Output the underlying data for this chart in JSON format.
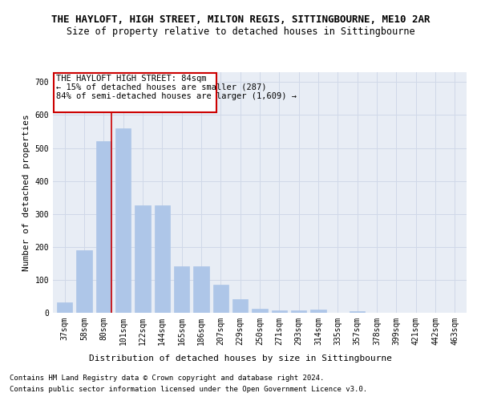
{
  "title": "THE HAYLOFT, HIGH STREET, MILTON REGIS, SITTINGBOURNE, ME10 2AR",
  "subtitle": "Size of property relative to detached houses in Sittingbourne",
  "xlabel": "Distribution of detached houses by size in Sittingbourne",
  "ylabel": "Number of detached properties",
  "footnote1": "Contains HM Land Registry data © Crown copyright and database right 2024.",
  "footnote2": "Contains public sector information licensed under the Open Government Licence v3.0.",
  "categories": [
    "37sqm",
    "58sqm",
    "80sqm",
    "101sqm",
    "122sqm",
    "144sqm",
    "165sqm",
    "186sqm",
    "207sqm",
    "229sqm",
    "250sqm",
    "271sqm",
    "293sqm",
    "314sqm",
    "335sqm",
    "357sqm",
    "378sqm",
    "399sqm",
    "421sqm",
    "442sqm",
    "463sqm"
  ],
  "values": [
    32,
    190,
    520,
    560,
    325,
    325,
    140,
    140,
    85,
    42,
    13,
    7,
    7,
    10,
    0,
    5,
    0,
    0,
    0,
    0,
    0
  ],
  "bar_color": "#aec6e8",
  "bar_edgecolor": "#aec6e8",
  "grid_color": "#d0d8e8",
  "background_color": "#e8edf5",
  "vline_x_idx": 2,
  "vline_color": "#cc0000",
  "annotation_line1": "THE HAYLOFT HIGH STREET: 84sqm",
  "annotation_line2": "← 15% of detached houses are smaller (287)",
  "annotation_line3": "84% of semi-detached houses are larger (1,609) →",
  "annotation_box_color": "#cc0000",
  "ylim": [
    0,
    730
  ],
  "yticks": [
    0,
    100,
    200,
    300,
    400,
    500,
    600,
    700
  ],
  "title_fontsize": 9,
  "subtitle_fontsize": 8.5,
  "xlabel_fontsize": 8,
  "ylabel_fontsize": 8,
  "tick_fontsize": 7,
  "annot_fontsize": 7.5,
  "footnote_fontsize": 6.5
}
